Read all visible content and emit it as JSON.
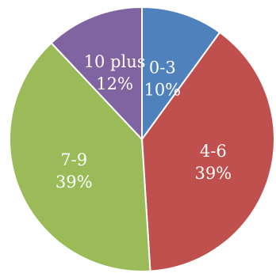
{
  "chart_data": {
    "type": "pie",
    "title": "",
    "legend": "none",
    "slices": [
      {
        "label": "0-3",
        "value": 10,
        "pct_label": "10%",
        "color": "#4F81BD"
      },
      {
        "label": "4-6",
        "value": 39,
        "pct_label": "39%",
        "color": "#C0504D"
      },
      {
        "label": "7-9",
        "value": 39,
        "pct_label": "39%",
        "color": "#9BBB59"
      },
      {
        "label": "10 plus",
        "value": 12,
        "pct_label": "12%",
        "color": "#8064A2"
      }
    ]
  }
}
